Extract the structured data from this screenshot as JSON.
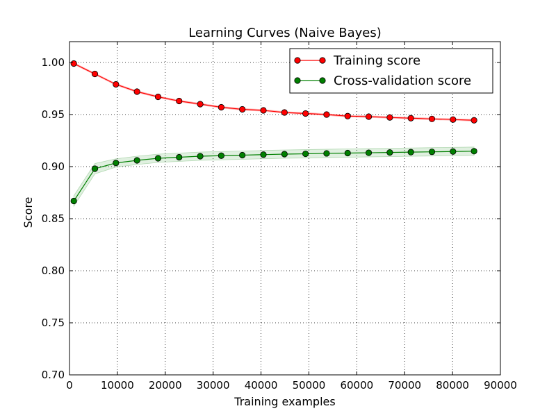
{
  "chart_data": {
    "type": "line",
    "title": "Learning Curves (Naive Bayes)",
    "xlabel": "Training examples",
    "ylabel": "Score",
    "xlim": [
      0,
      90000
    ],
    "ylim": [
      0.7,
      1.02
    ],
    "xticks": [
      0,
      10000,
      20000,
      30000,
      40000,
      50000,
      60000,
      70000,
      80000,
      90000
    ],
    "xtick_labels": [
      "0",
      "10000",
      "20000",
      "30000",
      "40000",
      "50000",
      "60000",
      "70000",
      "80000",
      "90000"
    ],
    "yticks": [
      0.7,
      0.75,
      0.8,
      0.85,
      0.9,
      0.95,
      1.0
    ],
    "ytick_labels": [
      "0.70",
      "0.75",
      "0.80",
      "0.85",
      "0.90",
      "0.95",
      "1.00"
    ],
    "grid": true,
    "legend_position": "top-right",
    "x": [
      900,
      5300,
      9700,
      14100,
      18500,
      22900,
      27300,
      31700,
      36100,
      40500,
      44900,
      49300,
      53700,
      58100,
      62500,
      66900,
      71300,
      75700,
      80100,
      84500
    ],
    "series": [
      {
        "name": "Training score",
        "color": "#ff0000",
        "fill_color": "#ff0000",
        "values": [
          0.999,
          0.989,
          0.979,
          0.972,
          0.967,
          0.963,
          0.96,
          0.957,
          0.955,
          0.954,
          0.952,
          0.951,
          0.95,
          0.9485,
          0.948,
          0.9472,
          0.9465,
          0.9458,
          0.9452,
          0.9445
        ],
        "band": 0.0008
      },
      {
        "name": "Cross-validation score",
        "color": "#008000",
        "fill_color": "#008000",
        "values": [
          0.867,
          0.898,
          0.9035,
          0.906,
          0.908,
          0.909,
          0.91,
          0.9105,
          0.911,
          0.9115,
          0.912,
          0.9123,
          0.9127,
          0.913,
          0.9133,
          0.9136,
          0.9139,
          0.9142,
          0.9145,
          0.9148
        ],
        "band_lower": [
          0.862,
          0.893,
          0.8995,
          0.902,
          0.904,
          0.905,
          0.906,
          0.9065,
          0.907,
          0.9075,
          0.908,
          0.9083,
          0.9087,
          0.909,
          0.9093,
          0.9096,
          0.9099,
          0.9102,
          0.9105,
          0.9108
        ],
        "band_upper": [
          0.872,
          0.903,
          0.9075,
          0.91,
          0.912,
          0.913,
          0.914,
          0.9145,
          0.915,
          0.9155,
          0.916,
          0.9163,
          0.9167,
          0.917,
          0.9173,
          0.9176,
          0.9179,
          0.9182,
          0.9185,
          0.9188
        ]
      }
    ]
  }
}
